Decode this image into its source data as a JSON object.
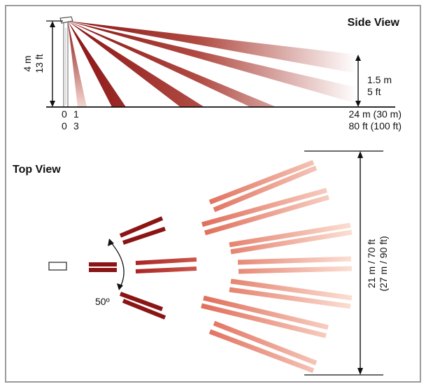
{
  "side_view": {
    "title": "Side View",
    "height_m": "4 m",
    "height_ft": "13 ft",
    "target_m": "1.5 m",
    "target_ft": "5 ft",
    "x0_m": "0",
    "x1_m": "1",
    "x0_ft": "0",
    "x1_ft": "3",
    "range_m": "24 m (30 m)",
    "range_ft": "80 ft (100 ft)"
  },
  "top_view": {
    "title": "Top View",
    "angle": "50º",
    "width_line1": "21 m / 70 ft",
    "width_line2": "(27 m / 90 ft)"
  },
  "colors": {
    "frame": "#9a9a9a",
    "beam_dark": "#8b1414",
    "beam_light": "#f0a080",
    "ink": "#111111"
  }
}
